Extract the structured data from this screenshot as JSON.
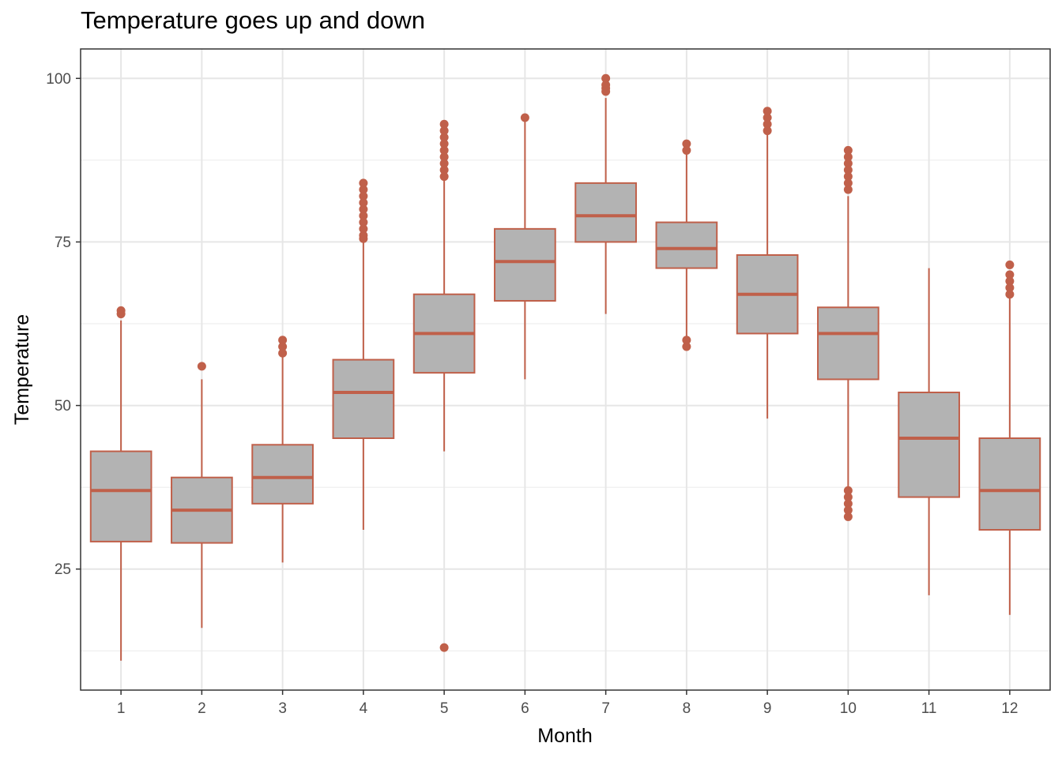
{
  "chart_data": {
    "type": "boxplot",
    "title": "Temperature goes up and down",
    "xlabel": "Month",
    "ylabel": "Temperature",
    "categories": [
      "1",
      "2",
      "3",
      "4",
      "5",
      "6",
      "7",
      "8",
      "9",
      "10",
      "11",
      "12"
    ],
    "ylim": [
      6.5,
      104.5
    ],
    "yticks": [
      25,
      50,
      75,
      100
    ],
    "grid": true,
    "box_fill": "#b3b3b3",
    "box_stroke": "#c0604a",
    "boxes": [
      {
        "min": 11,
        "q1": 29.2,
        "median": 37,
        "q3": 43,
        "max": 63,
        "outliers": [
          64,
          64.5
        ]
      },
      {
        "min": 16,
        "q1": 29,
        "median": 34,
        "q3": 39,
        "max": 54,
        "outliers": [
          56
        ]
      },
      {
        "min": 26,
        "q1": 35,
        "median": 39,
        "q3": 44,
        "max": 57.5,
        "outliers": [
          58,
          59,
          60
        ]
      },
      {
        "min": 31,
        "q1": 45,
        "median": 52,
        "q3": 57,
        "max": 75,
        "outliers": [
          75.5,
          76,
          77,
          78,
          79,
          80,
          81,
          82,
          83,
          84
        ]
      },
      {
        "min": 43,
        "q1": 55,
        "median": 61,
        "q3": 67,
        "max": 84.5,
        "outliers": [
          13,
          85,
          86,
          87,
          88,
          89,
          90,
          91,
          92,
          93
        ]
      },
      {
        "min": 54,
        "q1": 66,
        "median": 72,
        "q3": 77,
        "max": 93.5,
        "outliers": [
          94
        ]
      },
      {
        "min": 64,
        "q1": 75,
        "median": 79,
        "q3": 84,
        "max": 97,
        "outliers": [
          98,
          98.5,
          99,
          100
        ]
      },
      {
        "min": 60.5,
        "q1": 71,
        "median": 74,
        "q3": 78,
        "max": 88.5,
        "outliers": [
          59,
          60,
          89,
          90
        ]
      },
      {
        "min": 48,
        "q1": 61,
        "median": 67,
        "q3": 73,
        "max": 91.5,
        "outliers": [
          92,
          93,
          94,
          95
        ]
      },
      {
        "min": 37.5,
        "q1": 54,
        "median": 61,
        "q3": 65,
        "max": 82,
        "outliers": [
          33,
          34,
          35,
          36,
          37,
          83,
          84,
          85,
          86,
          87,
          88,
          89
        ]
      },
      {
        "min": 21,
        "q1": 36,
        "median": 45,
        "q3": 52,
        "max": 71,
        "outliers": []
      },
      {
        "min": 18,
        "q1": 31,
        "median": 37,
        "q3": 45,
        "max": 66.5,
        "outliers": [
          67,
          68,
          69,
          70,
          71.5
        ]
      }
    ]
  }
}
